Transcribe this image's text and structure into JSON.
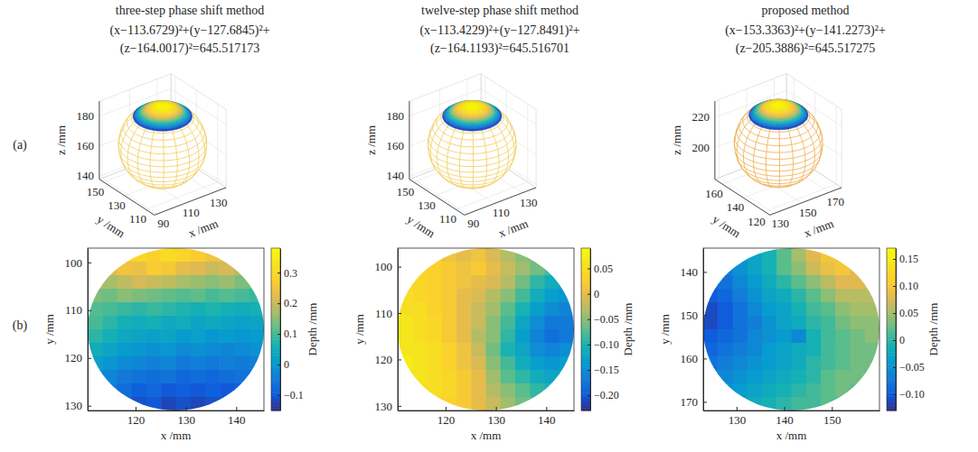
{
  "chart_data": [
    {
      "type": "sphere",
      "panel": "(a)",
      "title": "three-step phase shift method",
      "annotations": [
        "(x−113.6729)²+(y−127.6845)²+",
        "(z−164.0017)²=645.517173"
      ],
      "center": [
        113.6729,
        127.6845,
        164.0017
      ],
      "radius_squared": 645.517173,
      "cap_radius": 17,
      "color": "#f2d36b",
      "grid": true,
      "xlabel": "x /mm",
      "ylabel": "y /mm",
      "zlabel": "z /mm",
      "xlim": [
        88,
        140
      ],
      "ylim": [
        102,
        154
      ],
      "zlim": [
        138,
        190
      ],
      "xticks": [
        90,
        110,
        130
      ],
      "yticks": [
        110,
        130,
        150
      ],
      "zticks": [
        140,
        160,
        180
      ]
    },
    {
      "type": "sphere",
      "title": "twelve-step phase shift method",
      "annotations": [
        "(x−113.4229)²+(y−127.8491)²+",
        "(z−164.1193)²=645.516701"
      ],
      "center": [
        113.4229,
        127.8491,
        164.1193
      ],
      "radius_squared": 645.516701,
      "cap_radius": 17,
      "color": "#f2d36b",
      "grid": true,
      "xlabel": "x /mm",
      "ylabel": "y /mm",
      "zlabel": "z /mm",
      "xlim": [
        88,
        140
      ],
      "ylim": [
        102,
        154
      ],
      "zlim": [
        138,
        190
      ],
      "xticks": [
        90,
        110,
        130
      ],
      "yticks": [
        110,
        130,
        150
      ],
      "zticks": [
        140,
        160,
        180
      ]
    },
    {
      "type": "sphere",
      "title": "proposed method",
      "annotations": [
        "(x−153.3363)²+(y−141.2273)²+",
        "(z−205.3886)²=645.517275"
      ],
      "center": [
        153.3363,
        141.2273,
        205.3886
      ],
      "radius_squared": 645.517275,
      "cap_radius": 17,
      "color": "#efb45c",
      "grid": true,
      "xlabel": "x /mm",
      "ylabel": "y /mm",
      "zlabel": "z /mm",
      "xlim": [
        127,
        179
      ],
      "ylim": [
        115,
        167
      ],
      "zlim": [
        179,
        231
      ],
      "xticks": [
        130,
        150,
        170
      ],
      "yticks": [
        120,
        140,
        160
      ],
      "zticks": [
        200,
        220
      ]
    },
    {
      "type": "heatmap",
      "panel": "(b)",
      "xlabel": "x /mm",
      "ylabel": "y /mm",
      "xlim": [
        110.5,
        145.5
      ],
      "ylim": [
        97,
        131
      ],
      "xticks": [
        120,
        130,
        140
      ],
      "yticks": [
        100,
        110,
        120,
        130
      ],
      "clim": [
        -0.15,
        0.38
      ],
      "cticks": [
        {
          "value": -0.1,
          "label": "−0.1"
        },
        0,
        0.1,
        0.2,
        0.3
      ],
      "colorbar_label": "Depth /mm",
      "cells": [
        [
          null,
          null,
          0.27,
          0.3,
          0.28,
          0.31,
          0.29,
          0.27,
          0.25,
          0.24,
          null,
          null
        ],
        [
          null,
          0.22,
          0.25,
          0.24,
          0.27,
          0.26,
          0.23,
          0.22,
          0.2,
          0.21,
          0.18,
          null
        ],
        [
          0.18,
          0.17,
          0.19,
          0.21,
          0.2,
          0.19,
          0.17,
          0.16,
          0.15,
          0.16,
          0.14,
          0.13
        ],
        [
          0.14,
          0.13,
          0.15,
          0.14,
          0.13,
          0.12,
          0.11,
          0.12,
          0.1,
          0.11,
          0.1,
          0.09
        ],
        [
          0.11,
          0.1,
          0.09,
          0.08,
          0.09,
          0.08,
          0.07,
          0.06,
          0.07,
          0.06,
          0.05,
          0.06
        ],
        [
          0.1,
          0.08,
          0.06,
          0.05,
          0.06,
          0.04,
          0.05,
          0.03,
          0.04,
          0.03,
          0.02,
          0.03
        ],
        [
          0.08,
          0.06,
          0.04,
          0.03,
          0.02,
          0.03,
          0.01,
          0.02,
          0.0,
          0.01,
          0.0,
          0.01
        ],
        [
          0.05,
          0.03,
          0.01,
          0.0,
          -0.01,
          0.0,
          -0.02,
          -0.01,
          -0.02,
          -0.03,
          -0.02,
          -0.01
        ],
        [
          0.02,
          0.0,
          -0.02,
          -0.03,
          -0.04,
          -0.03,
          -0.05,
          -0.04,
          -0.05,
          -0.04,
          -0.05,
          -0.04
        ],
        [
          -0.01,
          -0.03,
          -0.05,
          -0.06,
          -0.07,
          -0.06,
          -0.08,
          -0.07,
          -0.08,
          -0.07,
          -0.06,
          -0.07
        ],
        [
          null,
          -0.05,
          -0.07,
          -0.09,
          -0.08,
          -0.1,
          -0.09,
          -0.1,
          -0.09,
          -0.1,
          -0.09,
          null
        ],
        [
          null,
          null,
          -0.09,
          -0.11,
          -0.1,
          -0.12,
          -0.11,
          -0.12,
          -0.11,
          -0.1,
          null,
          null
        ]
      ]
    },
    {
      "type": "heatmap",
      "xlabel": "x /mm",
      "ylabel": "y /mm",
      "xlim": [
        110.5,
        145.5
      ],
      "ylim": [
        96,
        131
      ],
      "xticks": [
        120,
        130,
        140
      ],
      "yticks": [
        100,
        110,
        120,
        130
      ],
      "clim": [
        -0.23,
        0.09
      ],
      "cticks": [
        {
          "value": -0.2,
          "label": "−0.20"
        },
        {
          "value": -0.15,
          "label": "−0.15"
        },
        {
          "value": -0.1,
          "label": "−0.10"
        },
        {
          "value": -0.05,
          "label": "−0.05"
        },
        0,
        0.05
      ],
      "colorbar_label": "Depth /mm",
      "cells": [
        [
          null,
          null,
          0.02,
          0.01,
          0.0,
          0.01,
          -0.01,
          -0.03,
          -0.05,
          -0.06,
          null,
          null
        ],
        [
          null,
          0.03,
          0.03,
          0.02,
          0.01,
          0.02,
          0.0,
          -0.02,
          -0.04,
          -0.06,
          -0.08,
          null
        ],
        [
          0.04,
          0.04,
          0.03,
          0.02,
          0.01,
          0.0,
          -0.01,
          -0.03,
          -0.06,
          -0.09,
          -0.11,
          -0.12
        ],
        [
          0.05,
          0.04,
          0.03,
          0.02,
          0.0,
          -0.01,
          -0.03,
          -0.05,
          -0.08,
          -0.11,
          -0.13,
          -0.14
        ],
        [
          0.05,
          0.05,
          0.03,
          0.02,
          0.0,
          -0.02,
          -0.04,
          -0.07,
          -0.1,
          -0.13,
          -0.15,
          -0.16
        ],
        [
          0.06,
          0.05,
          0.04,
          0.02,
          0.0,
          -0.02,
          -0.05,
          -0.08,
          -0.12,
          -0.15,
          -0.17,
          -0.17
        ],
        [
          0.06,
          0.05,
          0.04,
          0.02,
          0.0,
          -0.03,
          -0.05,
          -0.09,
          -0.13,
          -0.16,
          -0.18,
          -0.17
        ],
        [
          0.06,
          0.06,
          0.05,
          0.03,
          0.01,
          -0.02,
          -0.06,
          -0.1,
          -0.12,
          -0.15,
          -0.16,
          -0.15
        ],
        [
          0.07,
          0.06,
          0.05,
          0.03,
          0.01,
          -0.01,
          -0.05,
          -0.08,
          -0.11,
          -0.13,
          -0.14,
          -0.13
        ],
        [
          0.06,
          0.06,
          0.05,
          0.04,
          0.02,
          0.0,
          -0.04,
          -0.07,
          -0.09,
          -0.11,
          -0.12,
          -0.11
        ],
        [
          null,
          0.05,
          0.05,
          0.04,
          0.02,
          0.0,
          -0.03,
          -0.05,
          -0.07,
          -0.09,
          -0.1,
          null
        ],
        [
          null,
          null,
          0.03,
          0.03,
          0.02,
          0.0,
          -0.02,
          -0.04,
          -0.06,
          -0.07,
          null,
          null
        ]
      ]
    },
    {
      "type": "heatmap",
      "xlabel": "x /mm",
      "ylabel": "y /mm",
      "xlim": [
        123,
        160
      ],
      "ylim": [
        134.5,
        172
      ],
      "xticks": [
        130,
        140,
        150
      ],
      "yticks": [
        140,
        150,
        160,
        170
      ],
      "clim": [
        -0.13,
        0.17
      ],
      "cticks": [
        {
          "value": -0.1,
          "label": "−0.10"
        },
        {
          "value": -0.05,
          "label": "−0.05"
        },
        0,
        0.05,
        {
          "value": 0.1,
          "label": "0.10"
        },
        0.15
      ],
      "colorbar_label": "Depth /mm",
      "cells": [
        [
          null,
          null,
          -0.05,
          -0.03,
          -0.01,
          0.02,
          0.05,
          0.08,
          0.1,
          0.09,
          null,
          null
        ],
        [
          null,
          -0.07,
          -0.05,
          -0.03,
          -0.01,
          0.02,
          0.04,
          0.07,
          0.09,
          0.1,
          0.08,
          null
        ],
        [
          -0.09,
          -0.08,
          -0.06,
          -0.04,
          -0.02,
          0.0,
          0.02,
          0.04,
          0.06,
          0.08,
          0.08,
          0.07
        ],
        [
          -0.1,
          -0.09,
          -0.07,
          -0.05,
          -0.03,
          -0.02,
          0.0,
          0.02,
          0.04,
          0.06,
          0.06,
          0.06
        ],
        [
          -0.11,
          -0.1,
          -0.08,
          -0.06,
          -0.04,
          -0.03,
          -0.01,
          0.01,
          0.02,
          0.04,
          0.05,
          0.05
        ],
        [
          -0.11,
          -0.1,
          -0.08,
          -0.07,
          -0.05,
          -0.03,
          -0.02,
          0.0,
          0.01,
          0.03,
          0.04,
          0.04
        ],
        [
          -0.1,
          -0.09,
          -0.08,
          -0.06,
          -0.05,
          -0.04,
          -0.06,
          -0.01,
          0.01,
          0.02,
          0.03,
          0.04
        ],
        [
          -0.09,
          -0.08,
          -0.07,
          -0.06,
          -0.04,
          -0.03,
          -0.02,
          -0.01,
          0.01,
          0.02,
          0.03,
          0.03
        ],
        [
          -0.08,
          -0.07,
          -0.06,
          -0.05,
          -0.04,
          -0.03,
          -0.02,
          0.0,
          0.01,
          0.02,
          0.03,
          0.03
        ],
        [
          -0.06,
          -0.06,
          -0.05,
          -0.04,
          -0.03,
          -0.02,
          -0.01,
          0.0,
          0.02,
          0.03,
          0.03,
          0.02
        ],
        [
          null,
          -0.05,
          -0.04,
          -0.03,
          -0.02,
          -0.01,
          0.0,
          0.01,
          0.02,
          0.03,
          0.02,
          null
        ],
        [
          null,
          null,
          -0.03,
          -0.02,
          -0.01,
          0.0,
          0.01,
          0.01,
          0.02,
          0.01,
          null,
          null
        ]
      ]
    }
  ]
}
